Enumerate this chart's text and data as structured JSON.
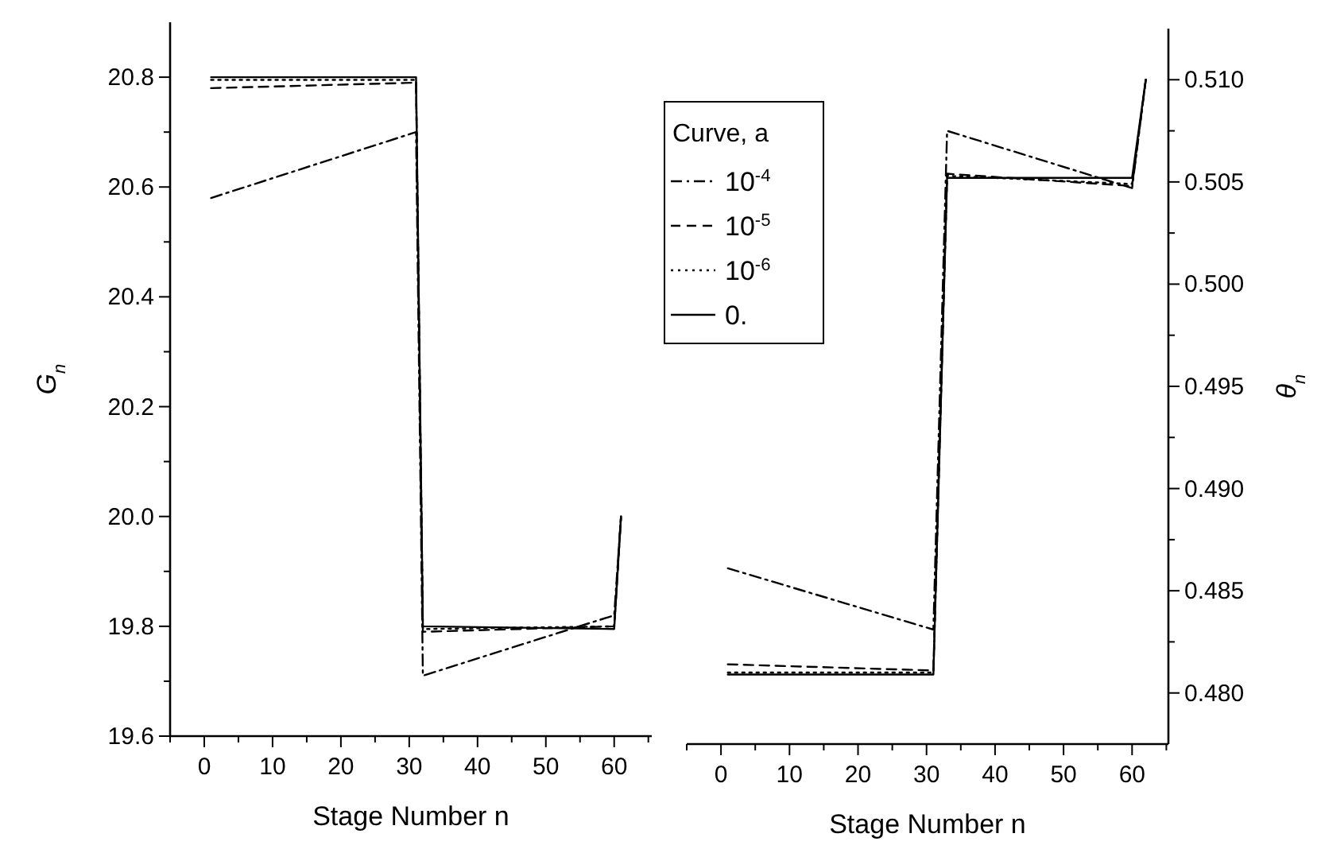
{
  "chart_data": [
    {
      "type": "line",
      "xlabel": "Stage Number n",
      "ylabel": "G$_{n}$",
      "legend_title": "Curve, a",
      "legend": "right",
      "x": [
        1,
        31,
        32,
        60,
        61
      ],
      "xlim": [
        -5,
        65.5
      ],
      "xticks": [
        {
          "value": -5,
          "label": null
        },
        0,
        {
          "value": 5,
          "label": null
        },
        10,
        {
          "value": 15,
          "label": null
        },
        20,
        {
          "value": 25,
          "label": null
        },
        30,
        {
          "value": 35,
          "label": null
        },
        40,
        {
          "value": 45,
          "label": null
        },
        50,
        {
          "value": 55,
          "label": null
        },
        60,
        {
          "value": 65,
          "label": null
        }
      ],
      "ylim": [
        19.6,
        20.9
      ],
      "yticks": [
        {
          "value": 19.6,
          "label": "19.6"
        },
        {
          "value": 19.7,
          "label": null
        },
        {
          "value": 19.8,
          "label": "19.8"
        },
        {
          "value": 19.9,
          "label": null
        },
        {
          "value": 20,
          "label": "20.0"
        },
        {
          "value": 20.1,
          "label": null
        },
        {
          "value": 20.2,
          "label": "20.2"
        },
        {
          "value": 20.3,
          "label": null
        },
        {
          "value": 20.4,
          "label": "20.4"
        },
        {
          "value": 20.5,
          "label": null
        },
        {
          "value": 20.6,
          "label": "20.6"
        },
        {
          "value": 20.7,
          "label": null
        },
        {
          "value": 20.8,
          "label": "20.8"
        }
      ],
      "series": [
        {
          "name": "10$^{-4}$",
          "color": "#000000",
          "line_style": "dashdot",
          "values": [
            20.58,
            20.7,
            19.71,
            19.82,
            20.0
          ]
        },
        {
          "name": "10$^{-5}$",
          "color": "#000000",
          "line_style": "dashed",
          "values": [
            20.78,
            20.79,
            19.79,
            19.8,
            20.0
          ]
        },
        {
          "name": "10$^{-6}$",
          "color": "#000000",
          "line_style": "dotted",
          "values": [
            20.795,
            20.795,
            19.795,
            19.8,
            20.0
          ]
        },
        {
          "name": "0.",
          "color": "#000000",
          "line_style": "solid",
          "values": [
            20.8,
            20.8,
            19.8,
            19.795,
            20.0
          ]
        }
      ]
    },
    {
      "type": "line",
      "xlabel": "Stage Number n",
      "y2label": "θ$_{n}$",
      "x": [
        1,
        31,
        33,
        60,
        62
      ],
      "xlim": [
        -5,
        65.3
      ],
      "xticks": [
        {
          "value": -5,
          "label": null
        },
        0,
        {
          "value": 5,
          "label": null
        },
        10,
        {
          "value": 15,
          "label": null
        },
        20,
        {
          "value": 25,
          "label": null
        },
        30,
        {
          "value": 35,
          "label": null
        },
        40,
        {
          "value": 45,
          "label": null
        },
        50,
        {
          "value": 55,
          "label": null
        },
        60,
        {
          "value": 65,
          "label": null
        }
      ],
      "y2lim": [
        0.4775,
        0.5125
      ],
      "y2ticks": [
        {
          "value": 0.48,
          "label": "0.480"
        },
        {
          "value": 0.4825,
          "label": null
        },
        {
          "value": 0.485,
          "label": "0.485"
        },
        {
          "value": 0.4875,
          "label": null
        },
        {
          "value": 0.49,
          "label": "0.490"
        },
        {
          "value": 0.4925,
          "label": null
        },
        {
          "value": 0.495,
          "label": "0.495"
        },
        {
          "value": 0.4975,
          "label": null
        },
        {
          "value": 0.5,
          "label": "0.500"
        },
        {
          "value": 0.5025,
          "label": null
        },
        {
          "value": 0.505,
          "label": "0.505"
        },
        {
          "value": 0.5075,
          "label": null
        },
        {
          "value": 0.51,
          "label": "0.510"
        }
      ],
      "series": [
        {
          "color": "#000000",
          "line_style": "dashdot",
          "axis": "y2",
          "values": [
            0.4861,
            0.4831,
            0.5075,
            0.5047,
            0.51
          ]
        },
        {
          "color": "#000000",
          "line_style": "dashed",
          "axis": "y2",
          "values": [
            0.4814,
            0.4811,
            0.5054,
            0.5048,
            0.51
          ]
        },
        {
          "color": "#000000",
          "line_style": "dotted",
          "axis": "y2",
          "values": [
            0.481,
            0.481,
            0.5053,
            0.5049,
            0.51
          ]
        },
        {
          "color": "#000000",
          "line_style": "solid",
          "axis": "y2",
          "values": [
            0.4809,
            0.4809,
            0.5052,
            0.5052,
            0.51
          ]
        }
      ]
    }
  ]
}
